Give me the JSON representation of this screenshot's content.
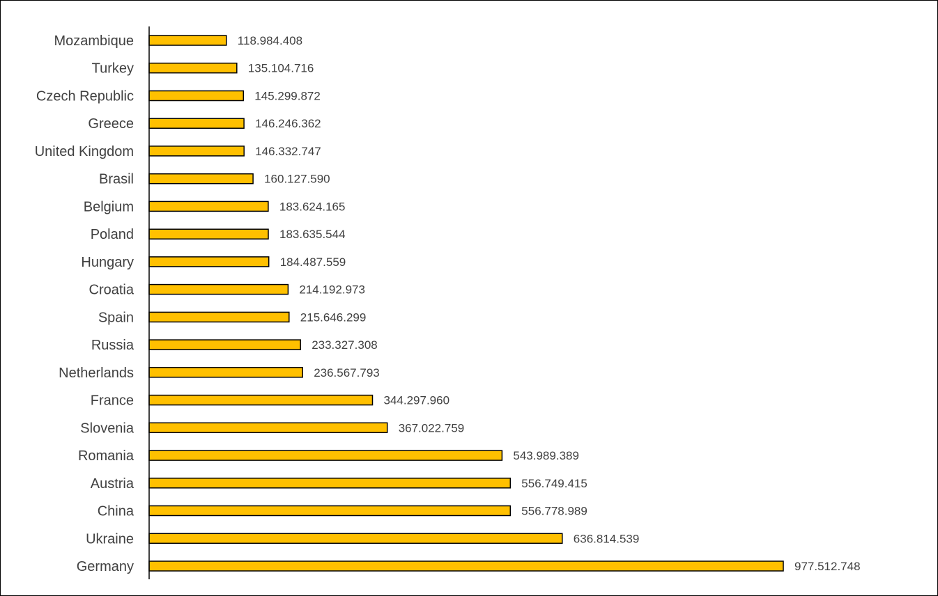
{
  "chart_data": {
    "type": "bar",
    "orientation": "horizontal",
    "title": "",
    "xlabel": "",
    "ylabel": "",
    "grid": false,
    "legend": "none",
    "xlim": [
      0,
      1000000000
    ],
    "categories": [
      "Mozambique",
      "Turkey",
      "Czech Republic",
      "Greece",
      "United Kingdom",
      "Brasil",
      "Belgium",
      "Poland",
      "Hungary",
      "Croatia",
      "Spain",
      "Russia",
      "Netherlands",
      "France",
      "Slovenia",
      "Romania",
      "Austria",
      "China",
      "Ukraine",
      "Germany"
    ],
    "values": [
      118984408,
      135104716,
      145299872,
      146246362,
      146332747,
      160127590,
      183624165,
      183635544,
      184487559,
      214192973,
      215646299,
      233327308,
      236567793,
      344297960,
      367022759,
      543989389,
      556749415,
      556778989,
      636814539,
      977512748
    ],
    "value_labels": [
      "118.984.408",
      "135.104.716",
      "145.299.872",
      "146.246.362",
      "146.332.747",
      "160.127.590",
      "183.624.165",
      "183.635.544",
      "184.487.559",
      "214.192.973",
      "215.646.299",
      "233.327.308",
      "236.567.793",
      "344.297.960",
      "367.022.759",
      "543.989.389",
      "556.749.415",
      "556.778.989",
      "636.814.539",
      "977.512.748"
    ],
    "colors": {
      "bar_fill": "#FFC000",
      "bar_stroke": "#000000",
      "axis": "#000000",
      "text": "#404040"
    }
  }
}
